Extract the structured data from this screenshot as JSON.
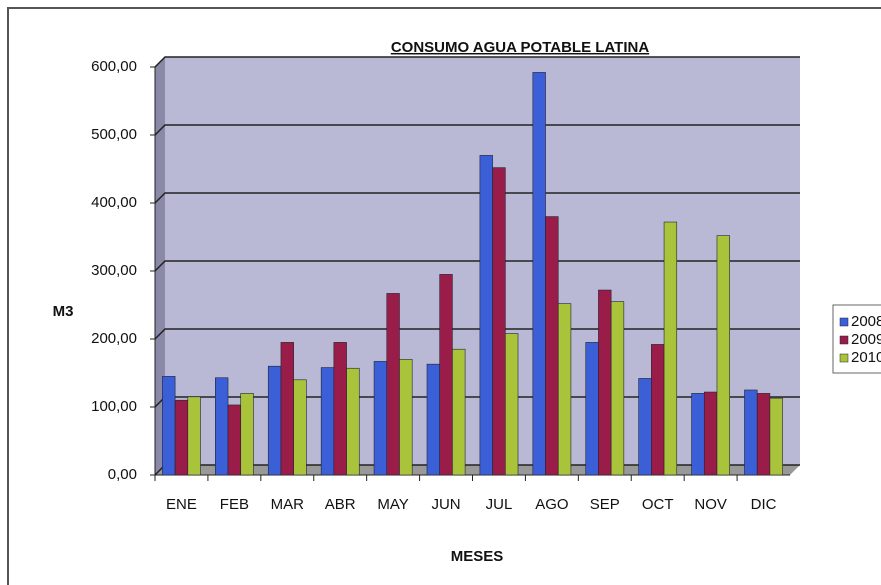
{
  "chart_data": {
    "type": "bar",
    "title": "CONSUMO AGUA POTABLE LATINA",
    "x_label": "MESES",
    "y_label": "M3",
    "categories": [
      "ENE",
      "FEB",
      "MAR",
      "ABR",
      "MAY",
      "JUN",
      "JUL",
      "AGO",
      "SEP",
      "OCT",
      "NOV",
      "DIC"
    ],
    "series": [
      {
        "name": "2008",
        "color": "#3b5fd6",
        "values": [
          145,
          143,
          160,
          158,
          167,
          163,
          470,
          592,
          195,
          142,
          120,
          125
        ]
      },
      {
        "name": "2009",
        "color": "#9a1d49",
        "values": [
          110,
          103,
          195,
          195,
          267,
          295,
          452,
          380,
          272,
          192,
          122,
          120
        ]
      },
      {
        "name": "2010",
        "color": "#a9c33b",
        "values": [
          115,
          120,
          140,
          157,
          170,
          185,
          208,
          252,
          255,
          372,
          352,
          113
        ]
      }
    ],
    "ylim": [
      0,
      600
    ],
    "yticks": [
      {
        "value": 0,
        "label": "0,00"
      },
      {
        "value": 100,
        "label": "100,00"
      },
      {
        "value": 200,
        "label": "200,00"
      },
      {
        "value": 300,
        "label": "300,00"
      },
      {
        "value": 400,
        "label": "400,00"
      },
      {
        "value": 500,
        "label": "500,00"
      },
      {
        "value": 600,
        "label": "600,00"
      }
    ],
    "grid": true,
    "legend": "right"
  }
}
